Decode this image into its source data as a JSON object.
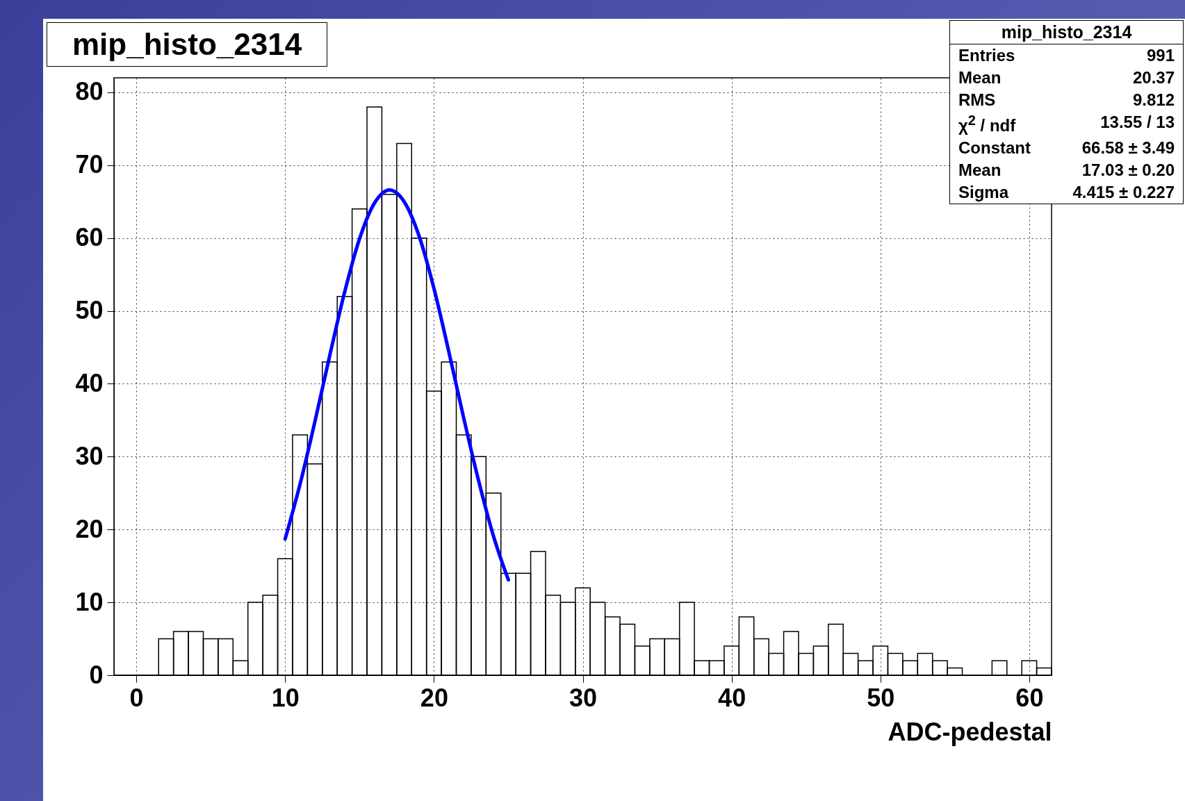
{
  "chart_data": {
    "type": "histogram",
    "title": "mip_histo_2314",
    "xlabel": "ADC-pedestal",
    "bins": [
      -1.5,
      -0.5,
      0.5,
      1.5,
      2.5,
      3.5,
      4.5,
      5.5,
      6.5,
      7.5,
      8.5,
      9.5,
      10.5,
      11.5,
      12.5,
      13.5,
      14.5,
      15.5,
      16.5,
      17.5,
      18.5,
      19.5,
      20.5,
      21.5,
      22.5,
      23.5,
      24.5,
      25.5,
      26.5,
      27.5,
      28.5,
      29.5,
      30.5,
      31.5,
      32.5,
      33.5,
      34.5,
      35.5,
      36.5,
      37.5,
      38.5,
      39.5,
      40.5,
      41.5,
      42.5,
      43.5,
      44.5,
      45.5,
      46.5,
      47.5,
      48.5,
      49.5,
      50.5,
      51.5,
      52.5,
      53.5,
      54.5,
      55.5,
      56.5,
      57.5,
      58.5,
      59.5,
      60.5,
      61.5
    ],
    "series": [
      {
        "color": "#000000",
        "values": [
          0,
          0,
          0,
          5,
          6,
          6,
          5,
          5,
          2,
          10,
          11,
          16,
          33,
          29,
          43,
          52,
          64,
          78,
          66,
          73,
          60,
          39,
          43,
          33,
          30,
          25,
          14,
          14,
          17,
          11,
          10,
          12,
          10,
          8,
          7,
          4,
          5,
          5,
          10,
          2,
          2,
          4,
          8,
          5,
          3,
          6,
          3,
          4,
          7,
          3,
          2,
          4,
          3,
          2,
          3,
          2,
          1,
          0,
          0,
          2,
          0,
          2,
          1
        ]
      },
      {
        "type": "line",
        "color": "#0000ff",
        "x": [
          10,
          11,
          12,
          13,
          14,
          15,
          16,
          16.5,
          17,
          17.5,
          18,
          19,
          20,
          21,
          22,
          23,
          24,
          25
        ],
        "values": [
          18.7,
          26.2,
          34.8,
          43.9,
          52.6,
          59.9,
          64.8,
          66.1,
          66.6,
          66.2,
          65.0,
          60.3,
          53.1,
          44.4,
          35.3,
          26.7,
          19.1,
          13.1
        ]
      }
    ],
    "xlim": [
      -1.5,
      61.5
    ],
    "xticks": [
      0,
      10,
      20,
      30,
      40,
      50,
      60
    ],
    "ylim": [
      0,
      82
    ],
    "yticks": [
      0,
      10,
      20,
      30,
      40,
      50,
      60,
      70,
      80
    ],
    "grid": true,
    "annotations": [
      "mip_histo_2314",
      "Entries",
      "991",
      "Mean",
      "20.37",
      "RMS",
      "9.812",
      "χ$^{2}$ / ndf",
      "13.55 / 13",
      "Constant",
      "66.58 ± 3.49",
      "Mean",
      "17.03 ± 0.20",
      "Sigma",
      "4.415 ± 0.227"
    ]
  }
}
